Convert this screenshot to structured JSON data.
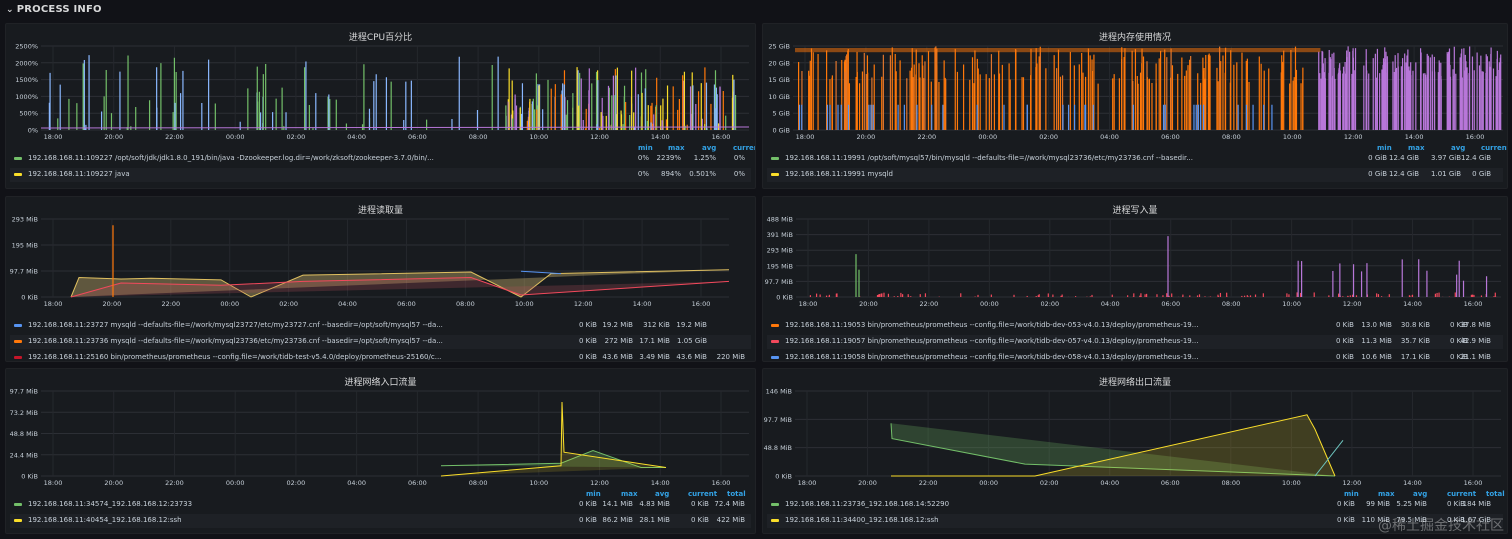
{
  "row_title": "PROCESS INFO",
  "watermark": "@稀土掘金技术社区",
  "colors": {
    "green": "#73bf69",
    "yellow": "#fade2a",
    "blue": "#5794f2",
    "orange": "#ff780a",
    "red": "#f2495c",
    "purple": "#b877d9",
    "teal": "#8ab8ff"
  },
  "panels": [
    {
      "title": "进程CPU百分比",
      "y_ticks": [
        "2500%",
        "2000%",
        "1500%",
        "1000%",
        "500%",
        "0%"
      ],
      "x_ticks": [
        "18:00",
        "20:00",
        "22:00",
        "00:00",
        "02:00",
        "04:00",
        "06:00",
        "08:00",
        "10:00",
        "12:00",
        "14:00",
        "16:00"
      ],
      "legend_headers": [
        "min",
        "max",
        "avg",
        "current"
      ],
      "legend": [
        {
          "color": "#73bf69",
          "name": "192.168.168.11:109227 /opt/soft/jdk/jdk1.8.0_191/bin/java -Dzookeeper.log.dir=/work/zksoft/zookeeper-3.7.0/bin/...",
          "values": [
            "0%",
            "2239%",
            "1.25%",
            "0%"
          ]
        },
        {
          "color": "#fade2a",
          "name": "192.168.168.11:109227 java",
          "values": [
            "0%",
            "894%",
            "0.501%",
            "0%"
          ]
        }
      ]
    },
    {
      "title": "进程内存使用情况",
      "y_ticks": [
        "25 GiB",
        "20 GiB",
        "15 GiB",
        "10 GiB",
        "5 GiB",
        "0 GiB"
      ],
      "x_ticks": [
        "18:00",
        "20:00",
        "22:00",
        "00:00",
        "02:00",
        "04:00",
        "06:00",
        "08:00",
        "10:00",
        "12:00",
        "14:00",
        "16:00"
      ],
      "legend_headers": [
        "min",
        "max",
        "avg",
        "current"
      ],
      "legend": [
        {
          "color": "#73bf69",
          "name": "192.168.168.11:19991 /opt/soft/mysql57/bin/mysqld --defaults-file=//work/mysql23736/etc/my23736.cnf --basedir...",
          "values": [
            "0 GiB",
            "12.4 GiB",
            "3.97 GiB",
            "12.4 GiB"
          ]
        },
        {
          "color": "#fade2a",
          "name": "192.168.168.11:19991 mysqld",
          "values": [
            "0 GiB",
            "12.4 GiB",
            "1.01 GiB",
            "0 GiB"
          ]
        }
      ]
    },
    {
      "title": "进程读取量",
      "y_ticks": [
        "293 MiB",
        "195 MiB",
        "97.7 MiB",
        "0 KiB"
      ],
      "x_ticks": [
        "18:00",
        "20:00",
        "22:00",
        "00:00",
        "02:00",
        "04:00",
        "06:00",
        "08:00",
        "10:00",
        "12:00",
        "14:00",
        "16:00"
      ],
      "legend_headers": [],
      "legend": [
        {
          "color": "#5794f2",
          "name": "192.168.168.11:23727 mysqld --defaults-file=//work/mysql23727/etc/my23727.cnf --basedir=/opt/soft/mysql57 --da...",
          "values": [
            "0 KiB",
            "19.2 MiB",
            "312 KiB",
            "19.2 MiB"
          ]
        },
        {
          "color": "#ff780a",
          "name": "192.168.168.11:23736 mysqld --defaults-file=//work/mysql23736/etc/my23736.cnf --basedir=/opt/soft/mysql57 --da...",
          "values": [
            "0 KiB",
            "272 MiB",
            "17.1 MiB",
            "1.05 GiB"
          ]
        },
        {
          "color": "#c4162a",
          "name": "192.168.168.11:25160 bin/prometheus/prometheus --config.file=/work/tidb-test-v5.4.0/deploy/prometheus-25160/c...",
          "values": [
            "0 KiB",
            "43.6 MiB",
            "3.49 MiB",
            "43.6 MiB",
            "220 MiB"
          ]
        }
      ]
    },
    {
      "title": "进程写入量",
      "y_ticks": [
        "488 MiB",
        "391 MiB",
        "293 MiB",
        "195 MiB",
        "97.7 MiB",
        "0 KiB"
      ],
      "x_ticks": [
        "18:00",
        "20:00",
        "22:00",
        "00:00",
        "02:00",
        "04:00",
        "06:00",
        "08:00",
        "10:00",
        "12:00",
        "14:00",
        "16:00"
      ],
      "legend_headers": [],
      "legend": [
        {
          "color": "#ff780a",
          "name": "192.168.168.11:19053 bin/prometheus/prometheus --config.file=/work/tidb-dev-053-v4.0.13/deploy/prometheus-19...",
          "values": [
            "0 KiB",
            "13.0 MiB",
            "30.8 KiB",
            "0 KiB",
            "37.8 MiB"
          ]
        },
        {
          "color": "#f2495c",
          "name": "192.168.168.11:19057 bin/prometheus/prometheus --config.file=/work/tidb-dev-057-v4.0.13/deploy/prometheus-19...",
          "values": [
            "0 KiB",
            "11.3 MiB",
            "35.7 KiB",
            "0 KiB",
            "42.9 MiB"
          ]
        },
        {
          "color": "#5794f2",
          "name": "192.168.168.11:19058 bin/prometheus/prometheus --config.file=/work/tidb-dev-058-v4.0.13/deploy/prometheus-19...",
          "values": [
            "0 KiB",
            "10.6 MiB",
            "17.1 KiB",
            "0 KiB",
            "21.1 MiB"
          ]
        }
      ]
    },
    {
      "title": "进程网络入口流量",
      "y_ticks": [
        "97.7 MiB",
        "73.2 MiB",
        "48.8 MiB",
        "24.4 MiB",
        "0 KiB"
      ],
      "x_ticks": [
        "18:00",
        "20:00",
        "22:00",
        "00:00",
        "02:00",
        "04:00",
        "06:00",
        "08:00",
        "10:00",
        "12:00",
        "14:00",
        "16:00"
      ],
      "legend_headers": [
        "min",
        "max",
        "avg",
        "current",
        "total"
      ],
      "legend": [
        {
          "color": "#73bf69",
          "name": "192.168.168.11:34574_192.168.168.12:23733",
          "values": [
            "0 KiB",
            "14.1 MiB",
            "4.83 MiB",
            "0 KiB",
            "72.4 MiB"
          ]
        },
        {
          "color": "#fade2a",
          "name": "192.168.168.11:40454_192.168.168.12:ssh",
          "values": [
            "0 KiB",
            "86.2 MiB",
            "28.1 MiB",
            "0 KiB",
            "422 MiB"
          ]
        }
      ]
    },
    {
      "title": "进程网络出口流量",
      "y_ticks": [
        "146 MiB",
        "97.7 MiB",
        "48.8 MiB",
        "0 KiB"
      ],
      "x_ticks": [
        "18:00",
        "20:00",
        "22:00",
        "00:00",
        "02:00",
        "04:00",
        "06:00",
        "08:00",
        "10:00",
        "12:00",
        "14:00",
        "16:00"
      ],
      "legend_headers": [
        "min",
        "max",
        "avg",
        "current",
        "total"
      ],
      "legend": [
        {
          "color": "#73bf69",
          "name": "192.168.168.11:23736_192.168.168.14:52290",
          "values": [
            "0 KiB",
            "99 MiB",
            "5.25 MiB",
            "0 KiB",
            "184 MiB"
          ]
        },
        {
          "color": "#fade2a",
          "name": "192.168.168.11:34400_192.168.168.12:ssh",
          "values": [
            "0 KiB",
            "110 MiB",
            "79.5 MiB",
            "0 KiB",
            "1.67 GiB"
          ]
        }
      ]
    }
  ]
}
